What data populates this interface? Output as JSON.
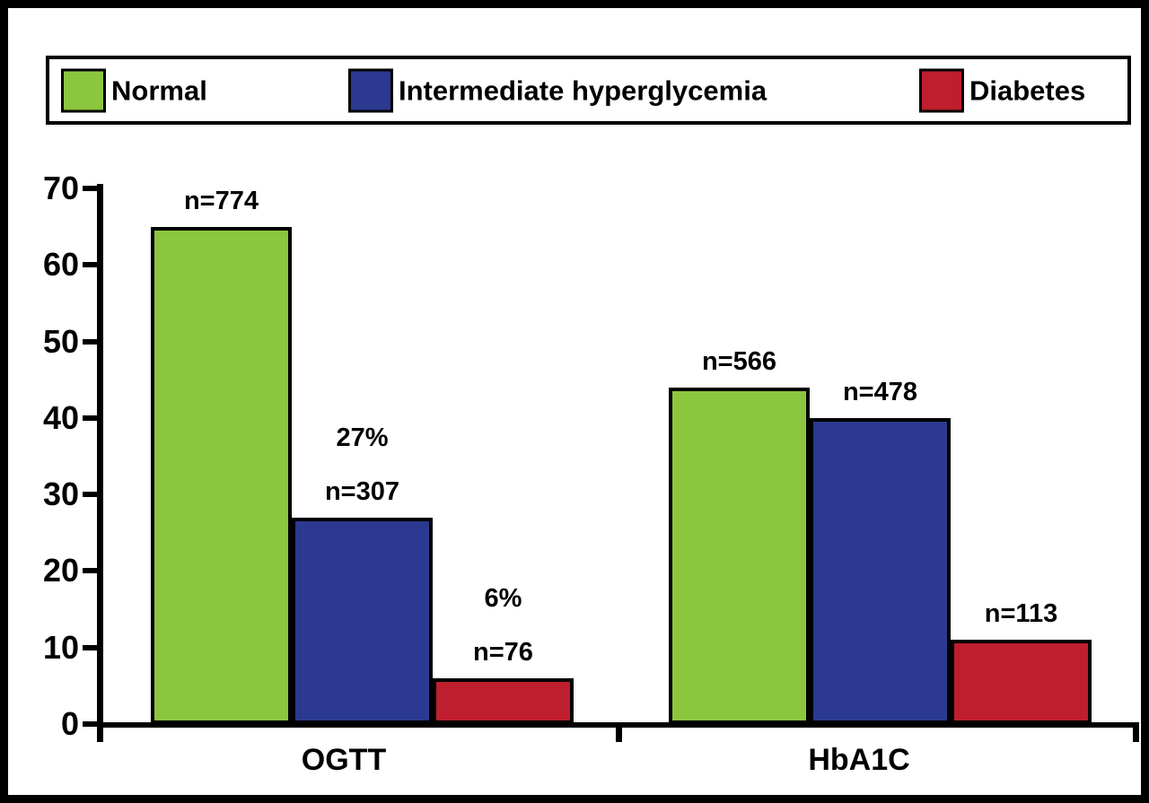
{
  "chart_data": {
    "type": "bar",
    "categories": [
      "OGTT",
      "HbA1C"
    ],
    "series": [
      {
        "name": "Normal",
        "color": "#8CC63F",
        "values": [
          65,
          44
        ],
        "labels": [
          [
            "n=774"
          ],
          [
            "n=566"
          ]
        ]
      },
      {
        "name": "Intermediate hyperglycemia",
        "color": "#2B3990",
        "values": [
          27,
          40
        ],
        "labels": [
          [
            "27%",
            "n=307"
          ],
          [
            "n=478"
          ]
        ]
      },
      {
        "name": "Diabetes",
        "color": "#BE1E2D",
        "values": [
          6,
          11
        ],
        "labels": [
          [
            "6%",
            "n=76"
          ],
          [
            "n=113"
          ]
        ]
      }
    ],
    "ylim": [
      0,
      70
    ],
    "yticks": [
      0,
      10,
      20,
      30,
      40,
      50,
      60,
      70
    ],
    "xlabel": "",
    "ylabel": "",
    "title": "",
    "grid": false,
    "legend_position": "top"
  }
}
